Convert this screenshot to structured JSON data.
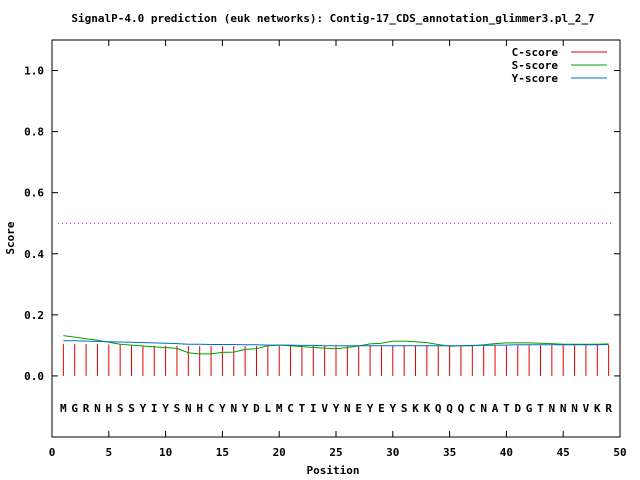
{
  "chart_data": {
    "type": "line",
    "title": "SignalP-4.0 prediction (euk networks): Contig-17_CDS_annotation_glimmer3.pl_2_7",
    "xlabel": "Position",
    "ylabel": "Score",
    "xlim": [
      0,
      50
    ],
    "ylim": [
      -0.2,
      1.1
    ],
    "xticks": [
      0,
      5,
      10,
      15,
      20,
      25,
      30,
      35,
      40,
      45,
      50
    ],
    "yticks": [
      0.0,
      0.2,
      0.4,
      0.6,
      0.8,
      1.0
    ],
    "ytick_labels": [
      "0.0",
      "0.2",
      "0.4",
      "0.6",
      "0.8",
      "1.0"
    ],
    "threshold": 0.5,
    "threshold_color": "#c000c0",
    "legend_position": "top-right",
    "sequence": [
      "M",
      "G",
      "R",
      "N",
      "H",
      "S",
      "S",
      "Y",
      "I",
      "Y",
      "S",
      "N",
      "H",
      "C",
      "Y",
      "N",
      "Y",
      "D",
      "L",
      "M",
      "C",
      "T",
      "I",
      "V",
      "Y",
      "N",
      "E",
      "Y",
      "E",
      "Y",
      "S",
      "K",
      "K",
      "Q",
      "Q",
      "Q",
      "C",
      "N",
      "A",
      "T",
      "D",
      "G",
      "T",
      "N",
      "N",
      "N",
      "V",
      "K",
      "R"
    ],
    "series": [
      {
        "name": "C-score",
        "color": "#e00000",
        "style": "impulse",
        "x": [
          1,
          2,
          3,
          4,
          5,
          6,
          7,
          8,
          9,
          10,
          11,
          12,
          13,
          14,
          15,
          16,
          17,
          18,
          19,
          20,
          21,
          22,
          23,
          24,
          25,
          26,
          27,
          28,
          29,
          30,
          31,
          32,
          33,
          34,
          35,
          36,
          37,
          38,
          39,
          40,
          41,
          42,
          43,
          44,
          45,
          46,
          47,
          48,
          49
        ],
        "values": [
          0.105,
          0.105,
          0.105,
          0.105,
          0.103,
          0.102,
          0.101,
          0.1,
          0.099,
          0.099,
          0.099,
          0.098,
          0.098,
          0.098,
          0.098,
          0.098,
          0.098,
          0.098,
          0.098,
          0.098,
          0.099,
          0.099,
          0.099,
          0.099,
          0.099,
          0.099,
          0.099,
          0.099,
          0.099,
          0.1,
          0.1,
          0.1,
          0.1,
          0.1,
          0.1,
          0.1,
          0.101,
          0.101,
          0.101,
          0.101,
          0.101,
          0.101,
          0.101,
          0.101,
          0.101,
          0.101,
          0.102,
          0.102,
          0.102
        ]
      },
      {
        "name": "S-score",
        "color": "#00a000",
        "style": "line",
        "x": [
          1,
          2,
          3,
          4,
          5,
          6,
          7,
          8,
          9,
          10,
          11,
          12,
          13,
          14,
          15,
          16,
          17,
          18,
          19,
          20,
          21,
          22,
          23,
          24,
          25,
          26,
          27,
          28,
          29,
          30,
          31,
          32,
          33,
          34,
          35,
          36,
          37,
          38,
          39,
          40,
          41,
          42,
          43,
          44,
          45,
          46,
          47,
          48,
          49
        ],
        "values": [
          0.132,
          0.127,
          0.122,
          0.117,
          0.11,
          0.104,
          0.101,
          0.098,
          0.095,
          0.093,
          0.09,
          0.076,
          0.072,
          0.072,
          0.077,
          0.078,
          0.087,
          0.089,
          0.099,
          0.101,
          0.099,
          0.096,
          0.093,
          0.091,
          0.089,
          0.093,
          0.098,
          0.105,
          0.107,
          0.114,
          0.114,
          0.112,
          0.109,
          0.103,
          0.097,
          0.099,
          0.099,
          0.102,
          0.106,
          0.108,
          0.108,
          0.108,
          0.107,
          0.106,
          0.104,
          0.104,
          0.104,
          0.104,
          0.105
        ]
      },
      {
        "name": "Y-score",
        "color": "#0070c0",
        "style": "line",
        "x": [
          1,
          2,
          3,
          4,
          5,
          6,
          7,
          8,
          9,
          10,
          11,
          12,
          13,
          14,
          15,
          16,
          17,
          18,
          19,
          20,
          21,
          22,
          23,
          24,
          25,
          26,
          27,
          28,
          29,
          30,
          31,
          32,
          33,
          34,
          35,
          36,
          37,
          38,
          39,
          40,
          41,
          42,
          43,
          44,
          45,
          46,
          47,
          48,
          49
        ],
        "values": [
          0.115,
          0.115,
          0.114,
          0.113,
          0.112,
          0.111,
          0.11,
          0.109,
          0.108,
          0.107,
          0.106,
          0.104,
          0.104,
          0.103,
          0.103,
          0.103,
          0.102,
          0.102,
          0.101,
          0.101,
          0.101,
          0.1,
          0.1,
          0.099,
          0.099,
          0.099,
          0.099,
          0.099,
          0.099,
          0.099,
          0.099,
          0.099,
          0.099,
          0.099,
          0.099,
          0.099,
          0.1,
          0.1,
          0.101,
          0.101,
          0.102,
          0.102,
          0.102,
          0.102,
          0.102,
          0.102,
          0.102,
          0.102,
          0.103
        ]
      }
    ]
  }
}
